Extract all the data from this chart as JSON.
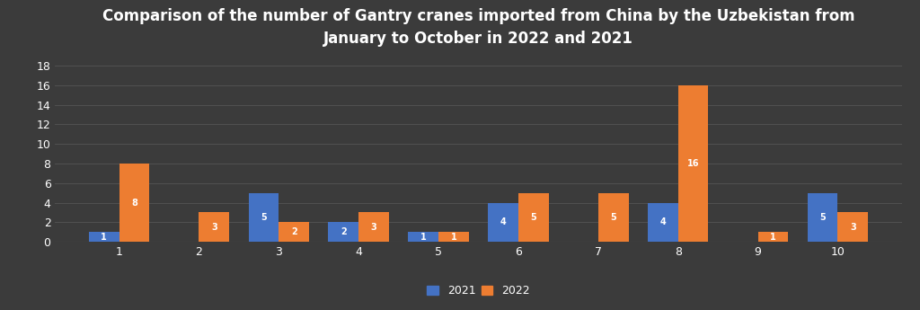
{
  "title": "Comparison of the number of Gantry cranes imported from China by the Uzbekistan from\nJanuary to October in 2022 and 2021",
  "months": [
    1,
    2,
    3,
    4,
    5,
    6,
    7,
    8,
    9,
    10
  ],
  "values_2021": [
    1,
    0,
    5,
    2,
    1,
    4,
    0,
    4,
    0,
    5
  ],
  "values_2022": [
    8,
    3,
    2,
    3,
    1,
    5,
    5,
    16,
    1,
    3
  ],
  "color_2021": "#4472C4",
  "color_2022": "#ED7D31",
  "background_color": "#3b3b3b",
  "text_color": "#ffffff",
  "grid_color": "#555555",
  "ylim": [
    0,
    19
  ],
  "yticks": [
    0,
    2,
    4,
    6,
    8,
    10,
    12,
    14,
    16,
    18
  ],
  "legend_labels": [
    "2021",
    "2022"
  ],
  "bar_width": 0.38,
  "label_fontsize": 7,
  "title_fontsize": 12,
  "axis_fontsize": 9,
  "xlim_left": 0.2,
  "xlim_right": 10.8
}
